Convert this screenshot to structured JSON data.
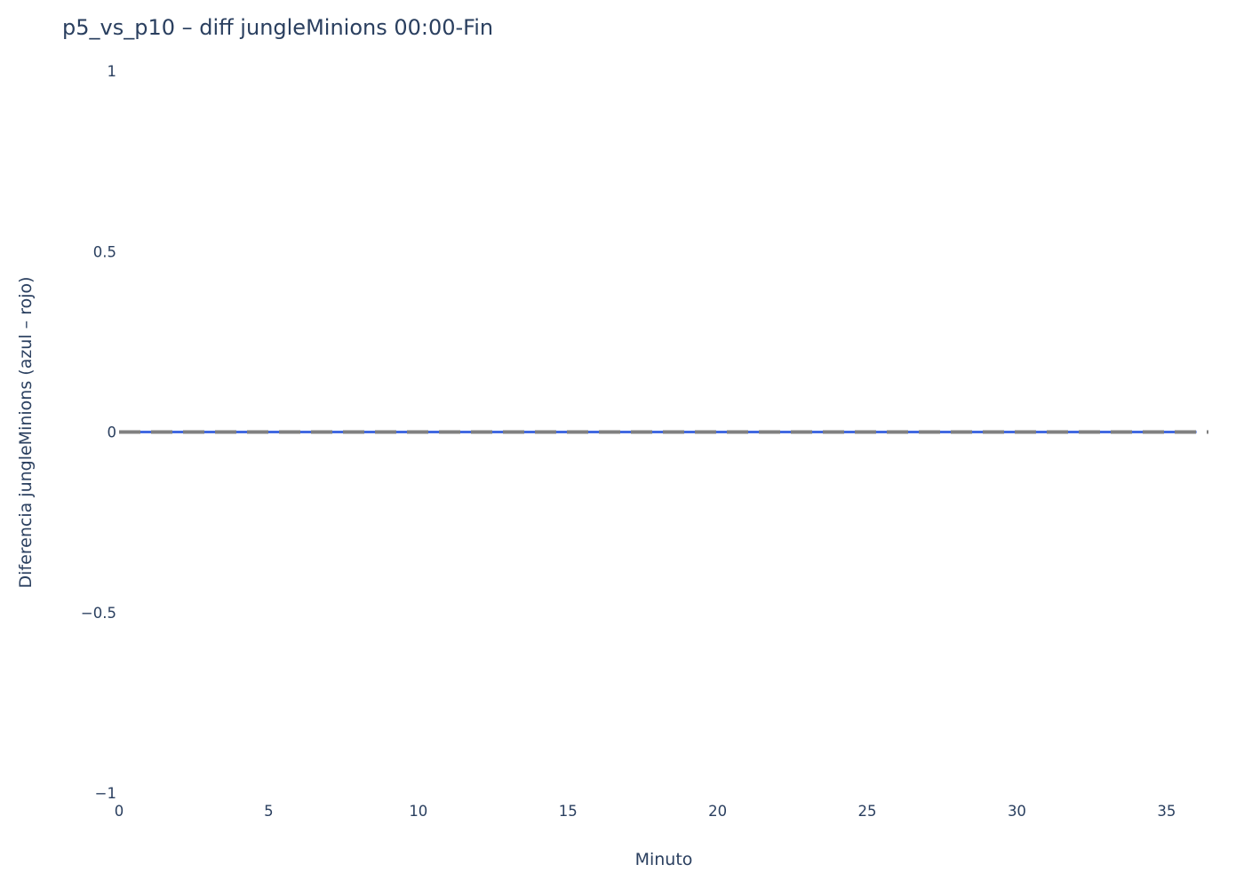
{
  "colors": {
    "text": "#2a3f5f",
    "series_line": "#4169e1",
    "reference_line": "#808080",
    "background": "#ffffff"
  },
  "chart_data": {
    "type": "line",
    "title": "p5_vs_p10 – diff jungleMinions 00:00-Fin",
    "xlabel": "Minuto",
    "ylabel": "Diferencia jungleMinions (azul – rojo)",
    "xlim": [
      0,
      36.4
    ],
    "ylim": [
      -1,
      1
    ],
    "x_ticks": [
      0,
      5,
      10,
      15,
      20,
      25,
      30,
      35
    ],
    "x_tick_labels": [
      "0",
      "5",
      "10",
      "15",
      "20",
      "25",
      "30",
      "35"
    ],
    "y_ticks": [
      -1,
      -0.5,
      0,
      0.5,
      1
    ],
    "y_tick_labels": [
      "−1",
      "−0.5",
      "0",
      "0.5",
      "1"
    ],
    "grid": false,
    "legend": "none",
    "series": [
      {
        "x": [
          0,
          1,
          2,
          3,
          4,
          5,
          6,
          7,
          8,
          9,
          10,
          11,
          12,
          13,
          14,
          15,
          16,
          17,
          18,
          19,
          20,
          21,
          22,
          23,
          24,
          25,
          26,
          27,
          28,
          29,
          30,
          31,
          32,
          33,
          34,
          35,
          36
        ],
        "values": [
          0,
          0,
          0,
          0,
          0,
          0,
          0,
          0,
          0,
          0,
          0,
          0,
          0,
          0,
          0,
          0,
          0,
          0,
          0,
          0,
          0,
          0,
          0,
          0,
          0,
          0,
          0,
          0,
          0,
          0,
          0,
          0,
          0,
          0,
          0,
          0,
          0
        ],
        "color": "#4169e1"
      }
    ],
    "reference_line": {
      "y": 0,
      "style": "dashed",
      "color": "#808080"
    }
  }
}
